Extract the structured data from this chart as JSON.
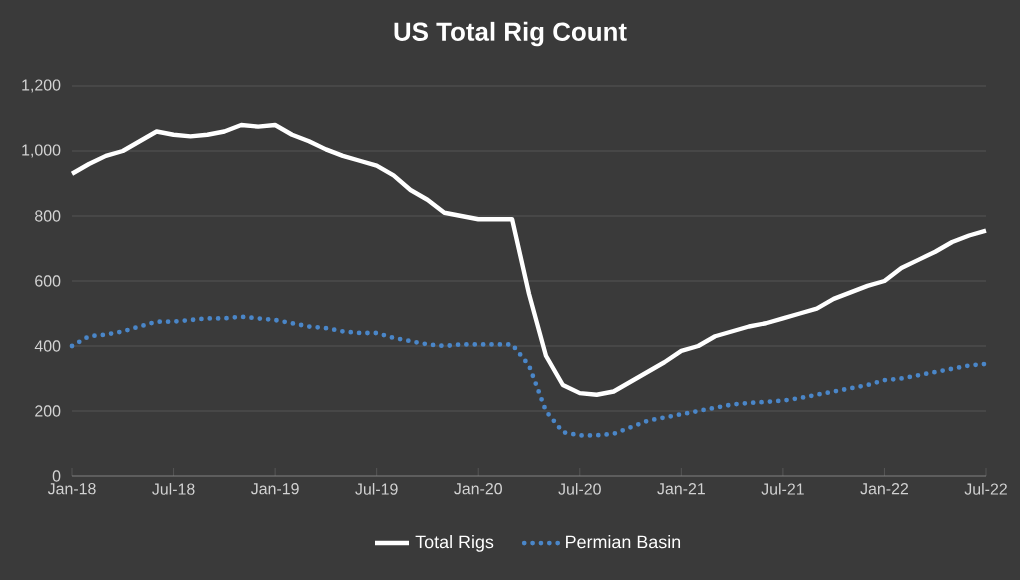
{
  "chart_data": {
    "type": "line",
    "title": "US Total Rig Count",
    "x": [
      "2018-01",
      "2018-02",
      "2018-03",
      "2018-04",
      "2018-05",
      "2018-06",
      "2018-07",
      "2018-08",
      "2018-09",
      "2018-10",
      "2018-11",
      "2018-12",
      "2019-01",
      "2019-02",
      "2019-03",
      "2019-04",
      "2019-05",
      "2019-06",
      "2019-07",
      "2019-08",
      "2019-09",
      "2019-10",
      "2019-11",
      "2019-12",
      "2020-01",
      "2020-02",
      "2020-03",
      "2020-04",
      "2020-05",
      "2020-06",
      "2020-07",
      "2020-08",
      "2020-09",
      "2020-10",
      "2020-11",
      "2020-12",
      "2021-01",
      "2021-02",
      "2021-03",
      "2021-04",
      "2021-05",
      "2021-06",
      "2021-07",
      "2021-08",
      "2021-09",
      "2021-10",
      "2021-11",
      "2021-12",
      "2022-01",
      "2022-02",
      "2022-03",
      "2022-04",
      "2022-05",
      "2022-06",
      "2022-07"
    ],
    "series": [
      {
        "name": "Total Rigs",
        "color": "#ffffff",
        "line_style": "solid",
        "values": [
          930,
          960,
          985,
          1000,
          1030,
          1060,
          1050,
          1045,
          1050,
          1060,
          1080,
          1075,
          1080,
          1050,
          1030,
          1005,
          985,
          970,
          955,
          925,
          880,
          850,
          810,
          800,
          790,
          790,
          790,
          560,
          370,
          280,
          255,
          250,
          260,
          290,
          320,
          350,
          385,
          400,
          430,
          445,
          460,
          470,
          485,
          500,
          515,
          545,
          565,
          585,
          600,
          640,
          665,
          690,
          720,
          740,
          755
        ]
      },
      {
        "name": "Permian Basin",
        "color": "#4a86c8",
        "line_style": "dotted",
        "values": [
          400,
          430,
          435,
          445,
          460,
          475,
          475,
          480,
          485,
          485,
          490,
          485,
          480,
          470,
          460,
          455,
          445,
          440,
          440,
          425,
          415,
          405,
          400,
          405,
          405,
          405,
          405,
          340,
          200,
          135,
          125,
          125,
          130,
          150,
          170,
          180,
          190,
          200,
          210,
          220,
          225,
          228,
          232,
          240,
          250,
          260,
          270,
          280,
          295,
          300,
          310,
          320,
          330,
          340,
          345
        ]
      }
    ],
    "xlim": [
      "2018-01",
      "2022-07"
    ],
    "xticks": [
      {
        "value": "2018-01",
        "label": "Jan-18"
      },
      {
        "value": "2018-07",
        "label": "Jul-18"
      },
      {
        "value": "2019-01",
        "label": "Jan-19"
      },
      {
        "value": "2019-07",
        "label": "Jul-19"
      },
      {
        "value": "2020-01",
        "label": "Jan-20"
      },
      {
        "value": "2020-07",
        "label": "Jul-20"
      },
      {
        "value": "2021-01",
        "label": "Jan-21"
      },
      {
        "value": "2021-07",
        "label": "Jul-21"
      },
      {
        "value": "2022-01",
        "label": "Jan-22"
      },
      {
        "value": "2022-07",
        "label": "Jul-22"
      }
    ],
    "ylim": [
      0,
      1200
    ],
    "yticks": [
      {
        "value": 0,
        "label": "0"
      },
      {
        "value": 200,
        "label": "200"
      },
      {
        "value": 400,
        "label": "400"
      },
      {
        "value": 600,
        "label": "600"
      },
      {
        "value": 800,
        "label": "800"
      },
      {
        "value": 1000,
        "label": "1,000"
      },
      {
        "value": 1200,
        "label": "1,200"
      }
    ],
    "grid": "y",
    "legend": "bottom",
    "marker": "none"
  }
}
